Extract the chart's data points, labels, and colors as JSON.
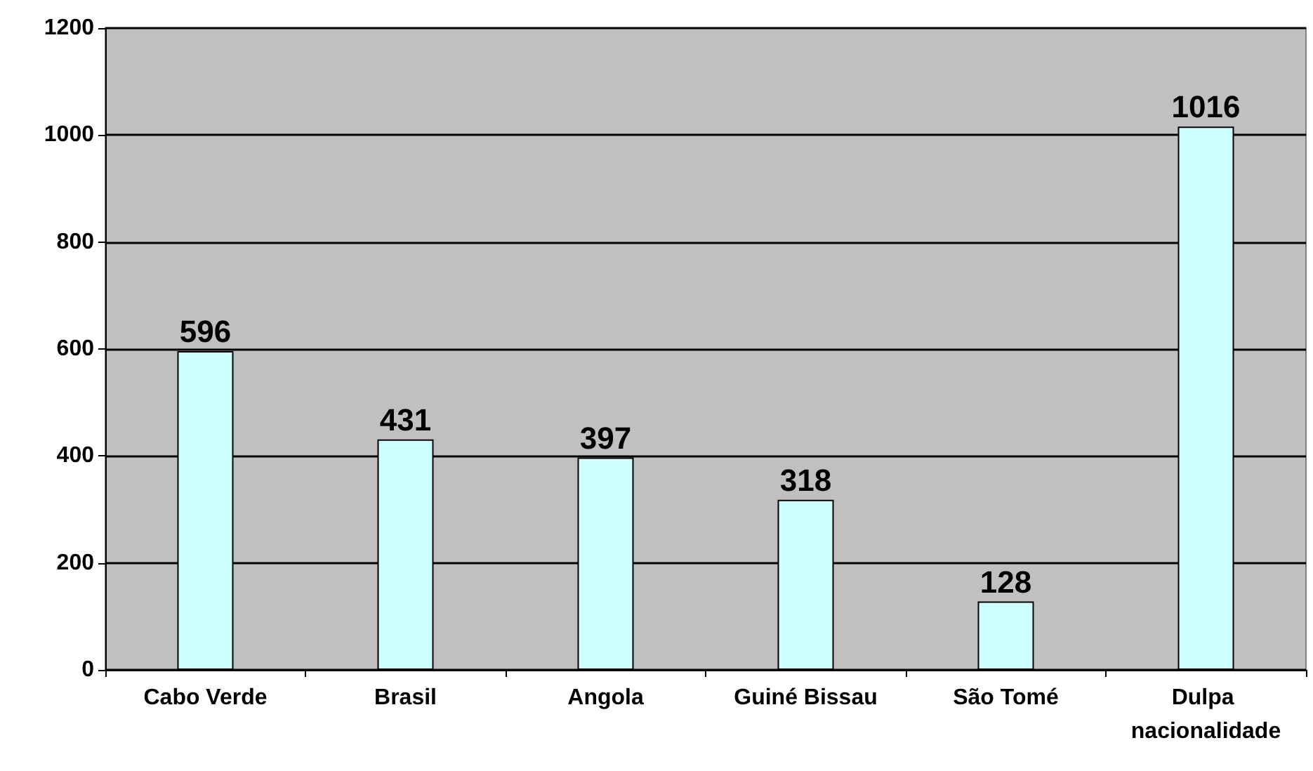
{
  "chart_data": {
    "type": "bar",
    "categories": [
      "Cabo Verde",
      "Brasil",
      "Angola",
      "Guiné Bissau",
      "São Tomé",
      "Dulpa nacionalidade"
    ],
    "values": [
      596,
      431,
      397,
      318,
      128,
      1016
    ],
    "color": "#ccffff",
    "ylim": [
      0,
      1200
    ],
    "yticks": [
      0,
      200,
      400,
      600,
      800,
      1000,
      1200
    ],
    "grid": "y",
    "data_labels": true
  }
}
